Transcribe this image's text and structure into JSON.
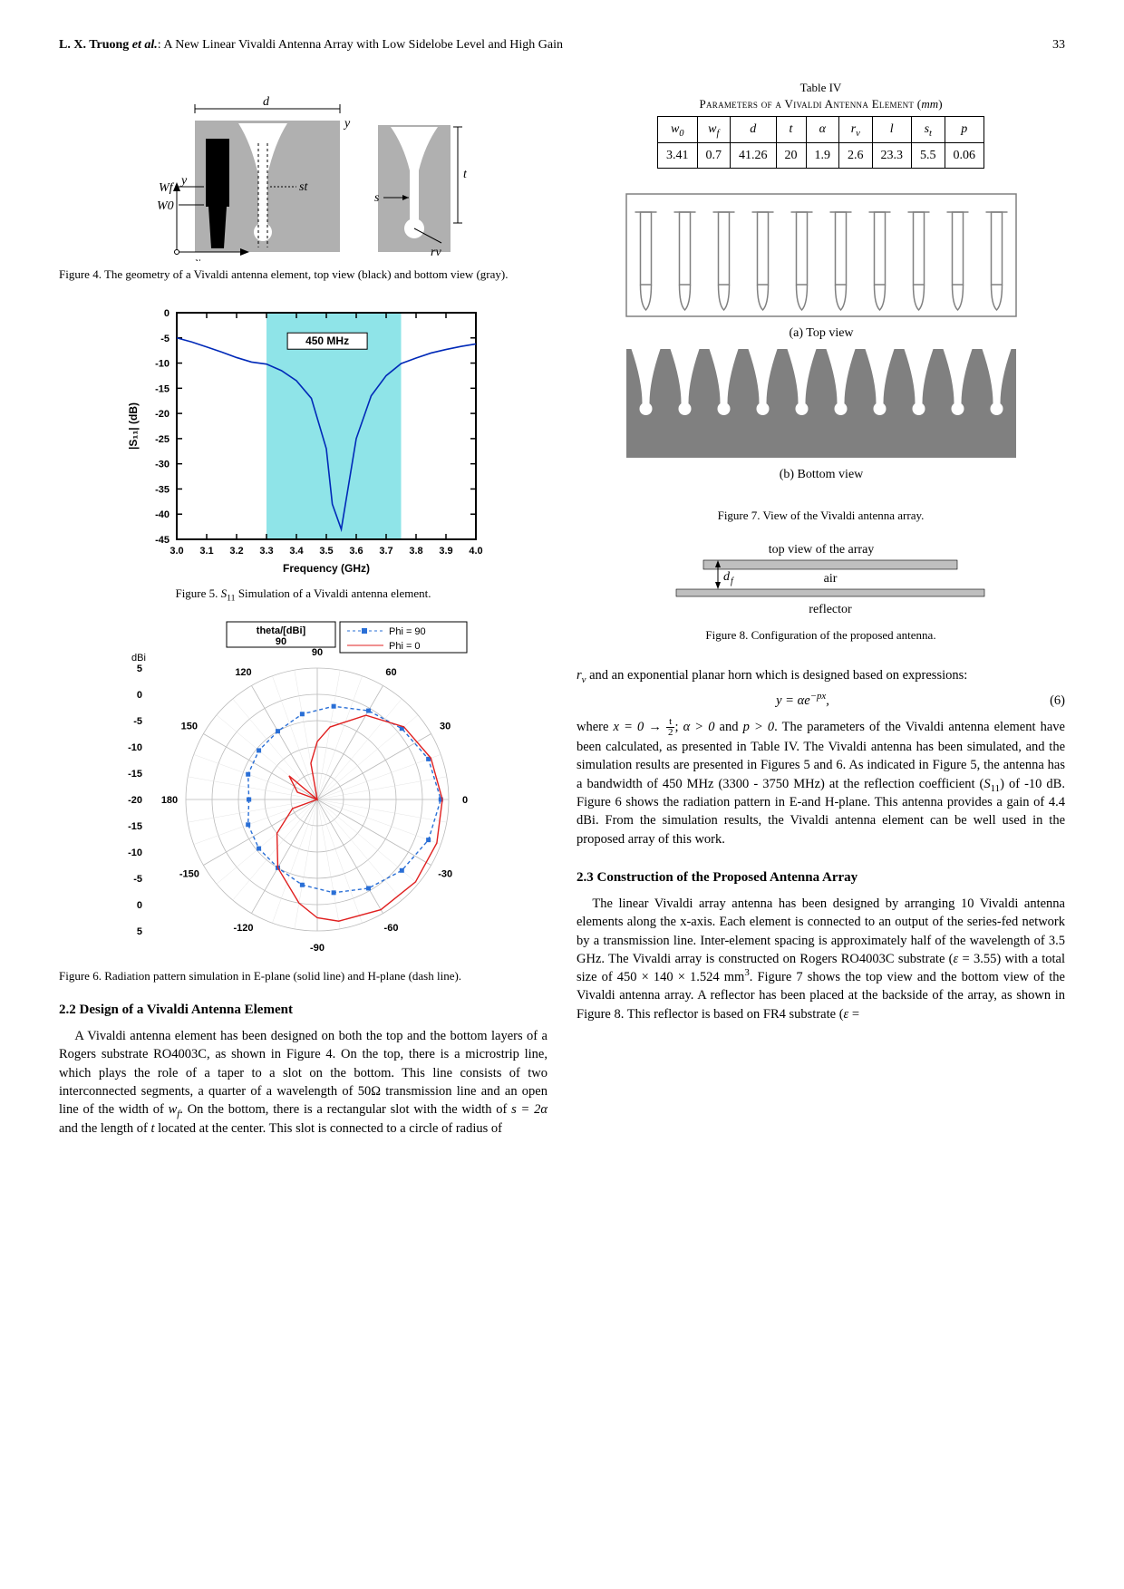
{
  "header": {
    "authors": "L. X. Truong",
    "etal": " et al.",
    "title_suffix": ": A New Linear Vivaldi Antenna Array with Low Sidelobe Level and High Gain",
    "page": "33"
  },
  "fig4": {
    "caption": "Figure 4. The geometry of a Vivaldi antenna element, top view (black) and bottom view (gray).",
    "labels": {
      "d": "d",
      "y": "y",
      "wf": "Wf",
      "w0": "W0",
      "st": "st",
      "s": "s",
      "t": "t",
      "rv": "rv",
      "x": "x"
    },
    "colors": {
      "top_view_bg": "#b0b0b0",
      "microstrip": "#000000",
      "bottom_bg": "#b0b0b0",
      "slot": "#ffffff"
    }
  },
  "fig5": {
    "caption_pre": "Figure 5. ",
    "caption_sym": "S",
    "caption_sub": "11",
    "caption_post": " Simulation of a Vivaldi antenna element.",
    "annotation": "450 MHz",
    "xlabel": "Frequency (GHz)",
    "ylabel": "|S₁₁| (dB)",
    "xlim": [
      3.0,
      4.0
    ],
    "xtick_step": 0.1,
    "xticks": [
      "3.0",
      "3.1",
      "3.2",
      "3.3",
      "3.4",
      "3.5",
      "3.6",
      "3.7",
      "3.8",
      "3.9",
      "4.0"
    ],
    "ylim": [
      -45,
      0
    ],
    "ytick_step": 5,
    "yticks": [
      "0",
      "-5",
      "-10",
      "-15",
      "-20",
      "-25",
      "-30",
      "-35",
      "-40",
      "-45"
    ],
    "band_x": [
      3.3,
      3.75
    ],
    "line_color": "#0029b8",
    "band_color": "#8fe4e8",
    "background": "#ffffff",
    "border_color": "#000000",
    "data_x": [
      3.0,
      3.05,
      3.1,
      3.15,
      3.2,
      3.25,
      3.3,
      3.35,
      3.4,
      3.45,
      3.5,
      3.52,
      3.55,
      3.6,
      3.65,
      3.7,
      3.75,
      3.8,
      3.85,
      3.9,
      3.95,
      4.0
    ],
    "data_y": [
      -5,
      -5.8,
      -6.8,
      -7.8,
      -8.9,
      -9.8,
      -10.2,
      -11.5,
      -13.5,
      -17,
      -27,
      -38,
      -43,
      -25,
      -16.5,
      -12.5,
      -10.1,
      -9.0,
      -8.0,
      -7.3,
      -6.7,
      -6.2
    ]
  },
  "fig6": {
    "caption": "Figure 6. Radiation pattern simulation in E-plane (solid line) and H-plane (dash line).",
    "title": "theta/[dBi]",
    "legend": [
      {
        "label": "Phi = 90",
        "color": "#2a6fd6",
        "marker": "square-dash"
      },
      {
        "label": "Phi = 0",
        "color": "#e02020",
        "marker": "line"
      }
    ],
    "angle_labels": [
      "0",
      "30",
      "60",
      "90",
      "120",
      "150",
      "180",
      "-150",
      "-120",
      "-90",
      "-60",
      "-30"
    ],
    "radial_labels": [
      "5",
      "0",
      "-5",
      "-10",
      "-15",
      "-20",
      "-15",
      "-10",
      "-5",
      "0",
      "5"
    ],
    "radial_label_unit": "dBi",
    "radial_rings": [
      5,
      0,
      -5,
      -10,
      -15,
      -20
    ],
    "grid_color": "#bbbbbb",
    "background": "#ffffff",
    "phi0_color": "#e02020",
    "phi90_color": "#2a6fd6",
    "marker_fill": "#2a6fd6",
    "phi0_theta": [
      -180,
      -160,
      -140,
      -120,
      -100,
      -90,
      -80,
      -60,
      -40,
      -20,
      0,
      20,
      40,
      60,
      80,
      90,
      100,
      120,
      140,
      160,
      180
    ],
    "phi0_db": [
      -20,
      -15,
      -10,
      -5,
      0,
      2.5,
      3.5,
      4.2,
      4.4,
      4.2,
      3.8,
      3.0,
      1.5,
      -1.5,
      -6,
      -9,
      -13,
      -20,
      -13,
      -16,
      -20
    ],
    "phi90_theta": [
      -180,
      -160,
      -140,
      -120,
      -100,
      -80,
      -60,
      -40,
      -20,
      0,
      20,
      40,
      60,
      80,
      100,
      120,
      140,
      160,
      180
    ],
    "phi90_db": [
      -7,
      -6,
      -5.5,
      -5,
      -3.5,
      -2,
      -0.5,
      1,
      2.5,
      3.5,
      2.5,
      1,
      -0.5,
      -2,
      -3.5,
      -5,
      -5.5,
      -6,
      -7
    ]
  },
  "sec22": {
    "heading": "2.2  Design of a Vivaldi Antenna Element",
    "p1": "A Vivaldi antenna element has been designed on both the top and the bottom layers of a Rogers substrate RO4003C, as shown in Figure 4. On the top, there is a microstrip line, which plays the role of a taper to a slot on the bottom. This line consists of two interconnected segments, a quarter of a wavelength of 50Ω transmission line and an open line of the width of ",
    "p1_wf": "w",
    "p1_wf_sub": "f",
    "p1b": ". On the bottom, there is a rectangular slot with the width of ",
    "p1_s": "s = 2α",
    "p1c": " and the length of ",
    "p1_t": "t",
    "p1d": " located at the center. This slot is connected to a circle of radius of"
  },
  "table4": {
    "caption_a": "Table IV",
    "caption_b": "Parameters of a Vivaldi Antenna Element (",
    "caption_unit": "mm",
    "caption_c": ")",
    "headers": [
      "w₀",
      "w_f",
      "d",
      "t",
      "α",
      "r_v",
      "l",
      "s_t",
      "p"
    ],
    "headers_plain": [
      "w",
      "w",
      "d",
      "t",
      "α",
      "r",
      "l",
      "s",
      "p"
    ],
    "headers_sub": [
      "0",
      "f",
      "",
      "",
      "",
      "v",
      "",
      "t",
      ""
    ],
    "values": [
      "3.41",
      "0.7",
      "41.26",
      "20",
      "1.9",
      "2.6",
      "23.3",
      "5.5",
      "0.06"
    ]
  },
  "fig7": {
    "caption": "Figure 7. View of the Vivaldi antenna array.",
    "sub_a": "(a) Top view",
    "sub_b": "(b) Bottom view",
    "n_elements": 10,
    "top_bg": "#ffffff",
    "element_stroke": "#808080",
    "bottom_bg": "#808080",
    "slot_fill": "#ffffff"
  },
  "fig8": {
    "caption": "Figure 8. Configuration of the proposed antenna.",
    "top_label": "top view of the array",
    "air_label": "air",
    "refl_label": "reflector",
    "df_label": "d",
    "df_sub": "f",
    "array_fill": "#bfbfbf",
    "reflector_fill": "#bfbfbf",
    "line_color": "#000000"
  },
  "rcol_text": {
    "p0a": "r",
    "p0a_sub": "v",
    "p0b": " and an exponential planar horn which is designed based on expressions:",
    "eq": "y =  αe",
    "eq_exp": "−px",
    "eq_post": ",",
    "eq_num": "(6)",
    "p1a": "where ",
    "p1_x": "x = 0 → ",
    "p1_frac_num": "t",
    "p1_frac_den": "2",
    "p1b": "; ",
    "p1_alpha": "α > 0",
    "p1c": " and ",
    "p1_p": "p > 0",
    "p1d": ". The parameters of the Vivaldi antenna element have been calculated, as presented in Table IV. The Vivaldi antenna has been simulated, and the simulation results are presented in Figures 5 and 6. As indicated in Figure 5, the antenna has a bandwidth of 450 MHz (3300 - 3750 MHz) at the reflection coefficient (",
    "p1_S": "S",
    "p1_S_sub": "11",
    "p1e": ") of -10 dB. Figure 6 shows the radiation pattern in E-and H-plane. This antenna provides a gain of 4.4 dBi. From the simulation results, the Vivaldi antenna element can be well used in the proposed array of this work."
  },
  "sec23": {
    "heading": "2.3  Construction of the Proposed Antenna Array",
    "p1a": "The linear Vivaldi array antenna has been designed by arranging 10 Vivaldi antenna elements along the x-axis. Each element is connected to an output of the series-fed network by a transmission line. Inter-element spacing is approximately half of the wavelength of 3.5 GHz. The Vivaldi array is constructed on Rogers RO4003C substrate (",
    "p1_eps": "ε",
    "p1b": " = 3.55) with a total size of 450 × 140 × 1.524 mm",
    "p1_sup": "3",
    "p1c": ". Figure 7 shows the top view and the bottom view of the Vivaldi antenna array. A reflector has been placed at the backside of the array, as shown in Figure 8. This reflector is based on FR4 substrate (",
    "p1_eps2": "ε",
    "p1d": " ="
  }
}
